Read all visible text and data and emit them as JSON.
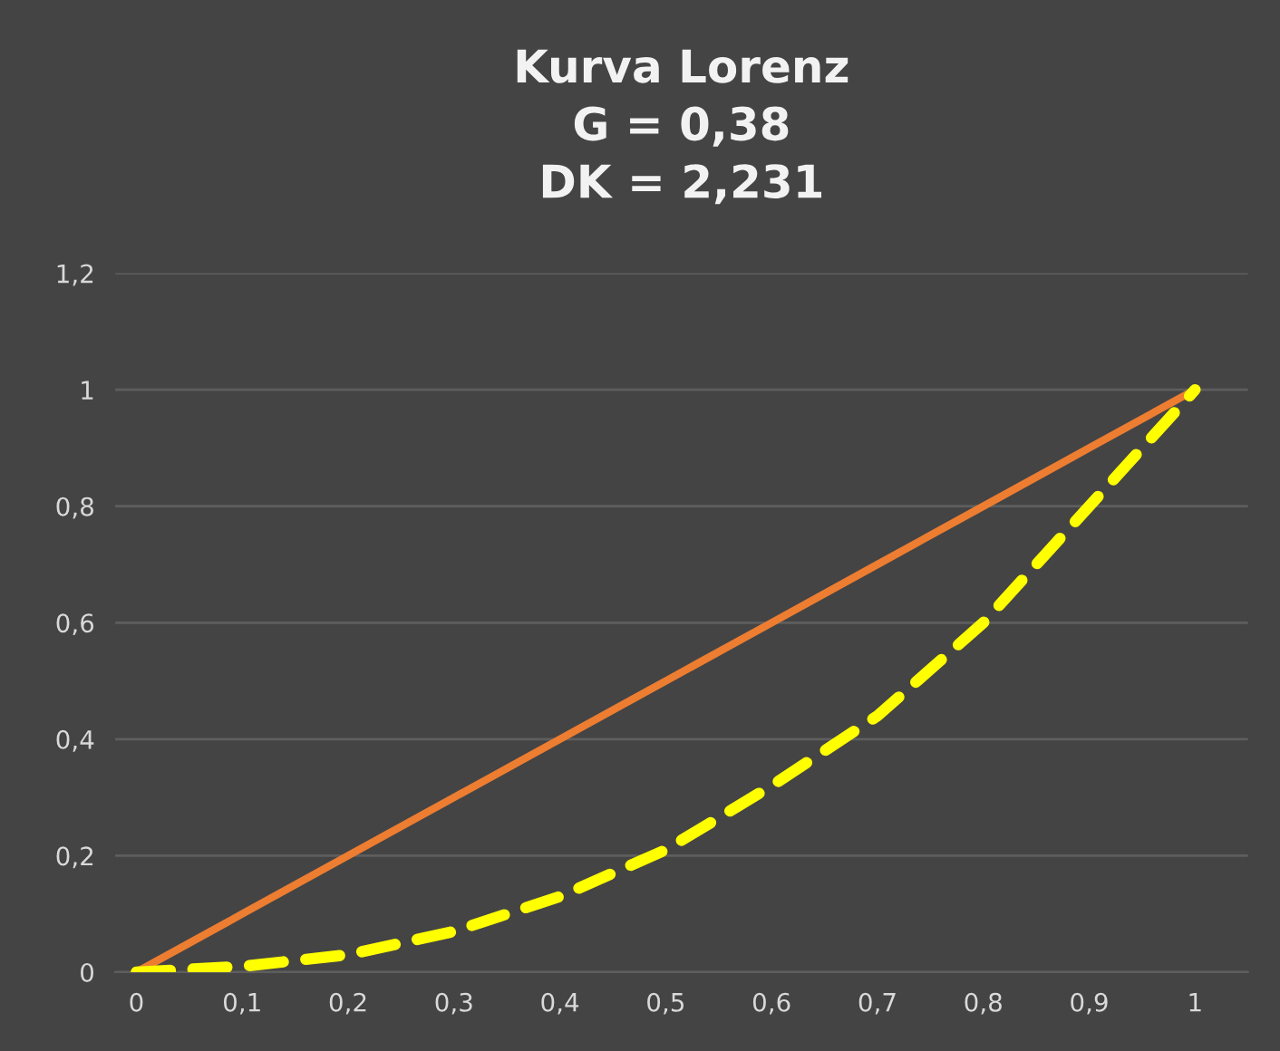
{
  "chart_data": {
    "type": "line",
    "title": "Kurva Lorenz\nG = 0,38\nDK = 2,231",
    "x": [
      0,
      0.1,
      0.2,
      0.3,
      0.4,
      0.5,
      0.6,
      0.7,
      0.8,
      0.9,
      1
    ],
    "series": [
      {
        "color": "#ed7d31",
        "line_style": "solid",
        "values": [
          0,
          0.1,
          0.2,
          0.3,
          0.4,
          0.5,
          0.6,
          0.7,
          0.8,
          0.9,
          1
        ]
      },
      {
        "color": "#ffff00",
        "line_style": "dashed",
        "values": [
          0,
          0.01,
          0.03,
          0.07,
          0.13,
          0.21,
          0.32,
          0.44,
          0.6,
          0.8,
          1
        ]
      }
    ],
    "xlim": [
      -0.02,
      1.05
    ],
    "ylim": [
      0,
      1.2
    ],
    "xticks": [
      0,
      {
        "value": 0.1,
        "label": "0,1"
      },
      {
        "value": 0.2,
        "label": "0,2"
      },
      {
        "value": 0.3,
        "label": "0,3"
      },
      {
        "value": 0.4,
        "label": "0,4"
      },
      {
        "value": 0.5,
        "label": "0,5"
      },
      {
        "value": 0.6,
        "label": "0,6"
      },
      {
        "value": 0.7,
        "label": "0,7"
      },
      {
        "value": 0.8,
        "label": "0,8"
      },
      {
        "value": 0.9,
        "label": "0,9"
      },
      1
    ],
    "yticks": [
      0,
      {
        "value": 0.2,
        "label": "0,2"
      },
      {
        "value": 0.4,
        "label": "0,4"
      },
      {
        "value": 0.6,
        "label": "0,6"
      },
      {
        "value": 0.8,
        "label": "0,8"
      },
      1,
      {
        "value": 1.2,
        "label": "1,2"
      }
    ],
    "grid": "y",
    "marker": "none"
  }
}
